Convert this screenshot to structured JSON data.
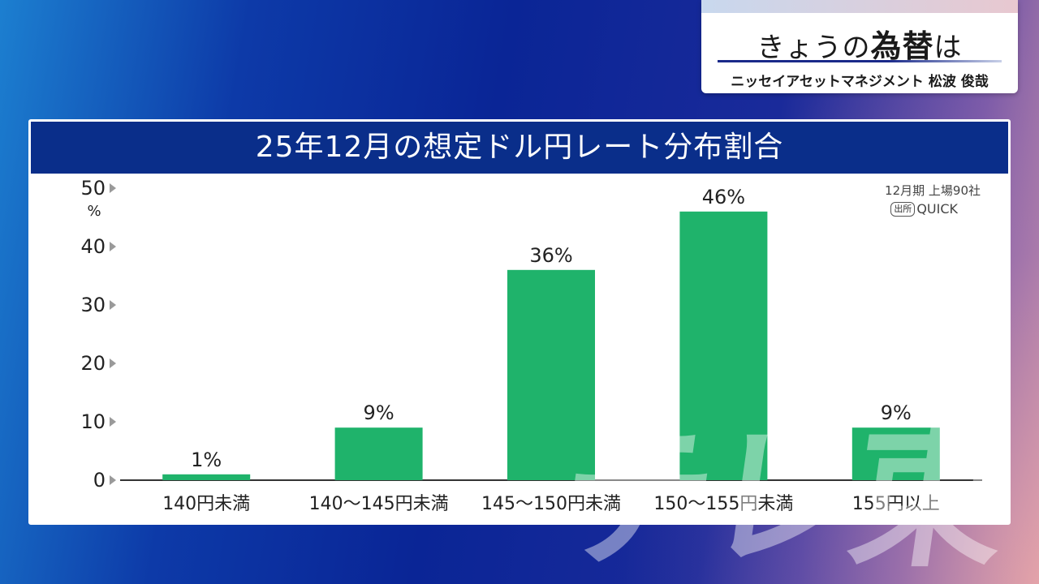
{
  "caption": {
    "title_prefix": "きょうの",
    "title_emphasis": "為替",
    "title_suffix": "は",
    "subtitle": "ニッセイアセットマネジメント 松波 俊哉"
  },
  "panel": {
    "title": "25年12月の想定ドル円レート分布割合",
    "source_line1": "12月期 上場90社",
    "source_badge": "出所",
    "source_name": "QUICK"
  },
  "watermark": "テレ東",
  "chart_data": {
    "type": "bar",
    "title": "25年12月の想定ドル円レート分布割合",
    "categories": [
      "140円未満",
      "140〜145円未満",
      "145〜150円未満",
      "150〜155円未満",
      "155円以上"
    ],
    "values": [
      1,
      9,
      36,
      46,
      9
    ],
    "value_labels": [
      "1%",
      "9%",
      "36%",
      "46%",
      "9%"
    ],
    "yunit": "%",
    "ylim": [
      0,
      50
    ],
    "yticks": [
      0,
      10,
      20,
      30,
      40,
      50
    ],
    "bar_color": "#1fb36b",
    "grid": false
  }
}
